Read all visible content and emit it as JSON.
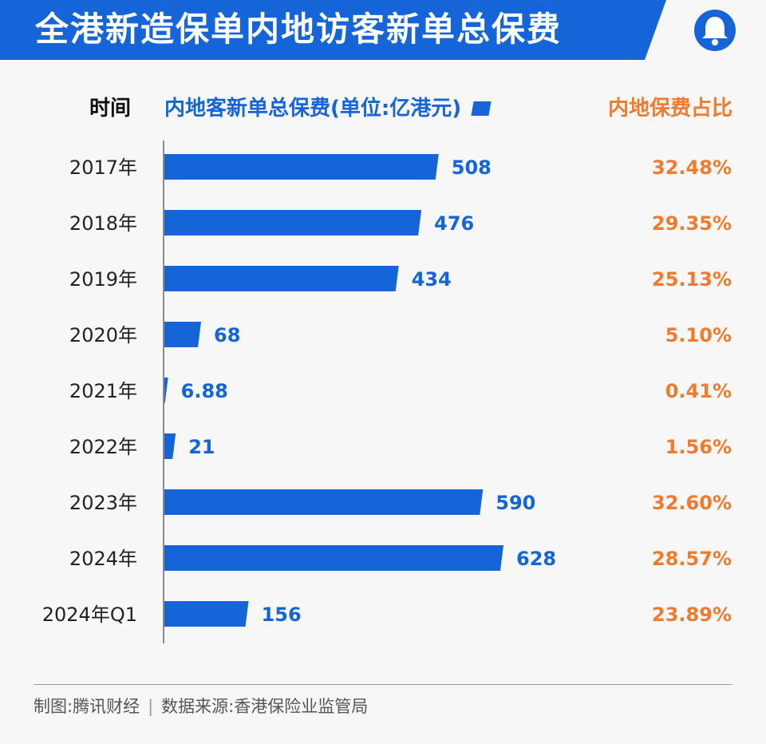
{
  "header": {
    "title": "全港新造保单内地访客新单总保费"
  },
  "icons": {
    "logo": "tencent-news-bell-icon"
  },
  "colors": {
    "brand": "#1565d8",
    "accent": "#f07a2e"
  },
  "columns": {
    "time": "时间",
    "premium": "内地客新单总保费(单位:亿港元)",
    "share": "内地保费占比"
  },
  "chart_data": {
    "type": "bar",
    "orientation": "horizontal",
    "categories": [
      "2017年",
      "2018年",
      "2019年",
      "2020年",
      "2021年",
      "2022年",
      "2023年",
      "2024年",
      "2024年Q1"
    ],
    "values": [
      508,
      476,
      434,
      68,
      6.88,
      21,
      590,
      628,
      156
    ],
    "value_labels": [
      "508",
      "476",
      "434",
      "68",
      "6.88",
      "21",
      "590",
      "628",
      "156"
    ],
    "share_labels": [
      "32.48%",
      "29.35%",
      "25.13%",
      "5.10%",
      "0.41%",
      "1.56%",
      "32.60%",
      "28.57%",
      "23.89%"
    ],
    "ylabel": "时间",
    "xlabel": "内地客新单总保费(单位:亿港元)",
    "xlim": [
      0,
      628
    ],
    "grid": false,
    "legend": "top"
  },
  "footer": {
    "credit": "制图:腾讯财经",
    "source": "数据来源:香港保险业监管局"
  }
}
